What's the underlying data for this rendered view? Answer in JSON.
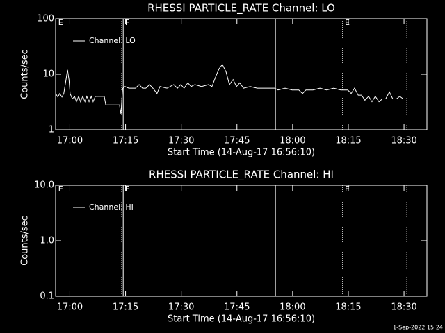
{
  "chart_data": [
    {
      "type": "line",
      "title": "RHESSI PARTICLE_RATE Channel: LO",
      "xlabel": "Start Time (14-Aug-17 16:56:10)",
      "ylabel": "Counts/sec",
      "xlim": [
        0,
        100
      ],
      "xticks": [
        {
          "value": 3.833,
          "label": "17:00"
        },
        {
          "value": 18.833,
          "label": "17:15"
        },
        {
          "value": 33.833,
          "label": "17:30"
        },
        {
          "value": 48.833,
          "label": "17:45"
        },
        {
          "value": 63.833,
          "label": "18:00"
        },
        {
          "value": 78.833,
          "label": "18:15"
        },
        {
          "value": 93.833,
          "label": "18:30"
        }
      ],
      "ylim": [
        1,
        100
      ],
      "yticks": [
        1,
        10,
        100
      ],
      "log_y": true,
      "series": [
        {
          "name": "Channel: LO",
          "color": "#ffffff",
          "x": [
            0,
            0.6,
            1.1,
            1.7,
            2.2,
            2.8,
            3.2,
            3.6,
            3.9,
            4.5,
            5.1,
            5.6,
            6.2,
            6.7,
            7.3,
            7.9,
            8.4,
            9.0,
            9.6,
            10.1,
            10.7,
            11.2,
            12.2,
            13.1,
            13.5,
            15.0,
            17.2,
            17.6,
            18.0,
            18.7,
            19.7,
            21.5,
            22.5,
            23.4,
            24.3,
            25.3,
            26.2,
            27.3,
            28.1,
            30.0,
            31.8,
            32.8,
            33.7,
            34.6,
            35.6,
            36.5,
            37.5,
            39.3,
            41.2,
            42.1,
            43.1,
            44.0,
            44.9,
            45.9,
            46.8,
            47.8,
            48.7,
            49.6,
            50.6,
            52.4,
            54.3,
            56.2,
            59.0,
            59.9,
            61.8,
            63.7,
            65.5,
            66.5,
            67.4,
            69.3,
            71.2,
            73.0,
            74.9,
            76.8,
            78.7,
            79.6,
            80.5,
            81.5,
            82.4,
            83.3,
            84.3,
            85.2,
            86.1,
            87.1,
            88.0,
            88.9,
            89.9,
            90.8,
            91.8,
            92.7,
            93.6,
            94.2
          ],
          "values": [
            4.5,
            3.9,
            4.5,
            3.9,
            4.5,
            8,
            12,
            8,
            4.5,
            3.6,
            4.0,
            3.2,
            4.0,
            3.2,
            4.0,
            3.2,
            4.0,
            3.2,
            4.0,
            3.2,
            4.0,
            4.0,
            4.0,
            4.0,
            2.8,
            2.8,
            2.8,
            1.9,
            5.5,
            6.0,
            5.6,
            5.6,
            6.5,
            5.6,
            5.6,
            6.5,
            5.6,
            4.5,
            6.0,
            5.6,
            6.5,
            5.6,
            6.5,
            5.6,
            7.0,
            6.0,
            6.5,
            6.0,
            6.5,
            6.0,
            9.0,
            12.5,
            15.0,
            11.0,
            6.5,
            8.0,
            6.0,
            7.0,
            5.6,
            6.0,
            5.6,
            5.6,
            5.6,
            5.2,
            5.6,
            5.2,
            5.2,
            4.5,
            5.2,
            5.2,
            5.6,
            5.2,
            5.6,
            5.2,
            5.2,
            4.5,
            5.6,
            4.2,
            4.2,
            3.4,
            4.0,
            3.2,
            4.0,
            3.2,
            3.6,
            3.6,
            4.8,
            3.6,
            3.6,
            4.0,
            3.6,
            3.6
          ]
        }
      ],
      "flags": [
        {
          "x": 17.8,
          "style": "dotted"
        },
        {
          "x": 18.2,
          "style": "solid"
        },
        {
          "x": 59.2,
          "style": "solid"
        },
        {
          "x": 77.3,
          "style": "dotted"
        },
        {
          "x": 94.6,
          "style": "dotted"
        }
      ],
      "flag_labels": [
        {
          "x": 0.7,
          "text": "E"
        },
        {
          "x": 18.7,
          "text": "F"
        },
        {
          "x": 77.9,
          "text": "E"
        }
      ]
    },
    {
      "type": "line",
      "title": "RHESSI PARTICLE_RATE Channel: HI",
      "xlabel": "Start Time (14-Aug-17 16:56:10)",
      "ylabel": "Counts/sec",
      "xlim": [
        0,
        100
      ],
      "xticks": [
        {
          "value": 3.833,
          "label": "17:00"
        },
        {
          "value": 18.833,
          "label": "17:15"
        },
        {
          "value": 33.833,
          "label": "17:30"
        },
        {
          "value": 48.833,
          "label": "17:45"
        },
        {
          "value": 63.833,
          "label": "18:00"
        },
        {
          "value": 78.833,
          "label": "18:15"
        },
        {
          "value": 93.833,
          "label": "18:30"
        }
      ],
      "ylim": [
        0.1,
        10
      ],
      "yticks": [
        0.1,
        {
          "value": 1,
          "label": "1.0"
        },
        {
          "value": 10,
          "label": "10.0"
        }
      ],
      "log_y": true,
      "series": [
        {
          "name": "Channel: HI",
          "color": "#ffffff",
          "x": [],
          "values": []
        }
      ],
      "flags": [
        {
          "x": 17.8,
          "style": "dotted"
        },
        {
          "x": 18.2,
          "style": "solid"
        },
        {
          "x": 59.2,
          "style": "solid"
        },
        {
          "x": 77.3,
          "style": "dotted"
        },
        {
          "x": 94.6,
          "style": "dotted"
        }
      ],
      "flag_labels": [
        {
          "x": 0.7,
          "text": "E"
        },
        {
          "x": 18.7,
          "text": "F"
        },
        {
          "x": 77.9,
          "text": "E"
        }
      ]
    }
  ],
  "footer": "1-Sep-2022 15:24"
}
